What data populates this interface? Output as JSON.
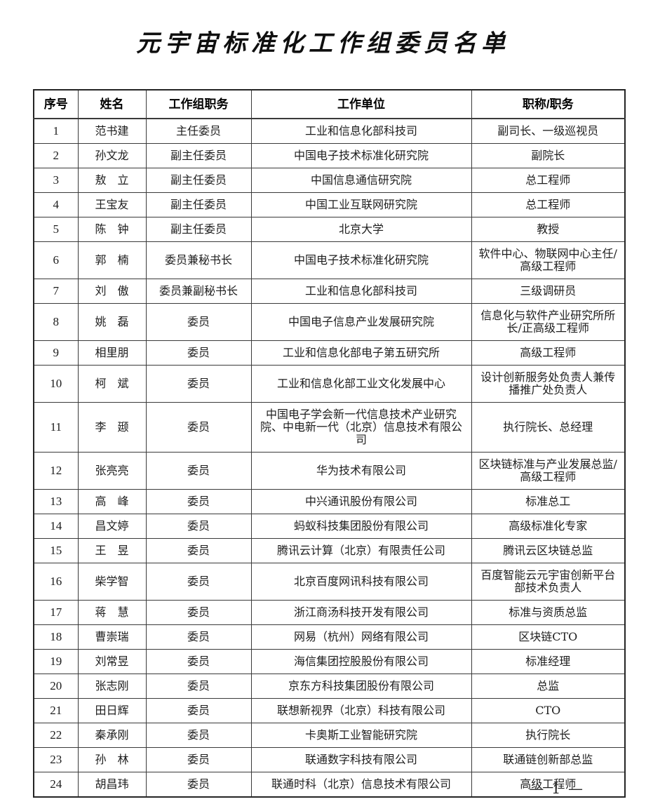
{
  "title": "元宇宙标准化工作组委员名单",
  "page_number": "— 1 —",
  "colors": {
    "page_background": "#ffffff",
    "text": "#1d1d1d",
    "border": "#3a3a3a",
    "outer_border": "#242424",
    "title_text": "#0f0f0f"
  },
  "table": {
    "headers": [
      "序号",
      "姓名",
      "工作组职务",
      "工作单位",
      "职称/职务"
    ],
    "rows": [
      {
        "no": "1",
        "name": "范书建",
        "role": "主任委员",
        "org": "工业和信息化部科技司",
        "title": "副司长、一级巡视员"
      },
      {
        "no": "2",
        "name": "孙文龙",
        "role": "副主任委员",
        "org": "中国电子技术标准化研究院",
        "title": "副院长"
      },
      {
        "no": "3",
        "name": "敖　立",
        "role": "副主任委员",
        "org": "中国信息通信研究院",
        "title": "总工程师"
      },
      {
        "no": "4",
        "name": "王宝友",
        "role": "副主任委员",
        "org": "中国工业互联网研究院",
        "title": "总工程师"
      },
      {
        "no": "5",
        "name": "陈　钟",
        "role": "副主任委员",
        "org": "北京大学",
        "title": "教授"
      },
      {
        "no": "6",
        "name": "郭　楠",
        "role": "委员兼秘书长",
        "org": "中国电子技术标准化研究院",
        "title": "软件中心、物联网中心主任/高级工程师"
      },
      {
        "no": "7",
        "name": "刘　傲",
        "role": "委员兼副秘书长",
        "org": "工业和信息化部科技司",
        "title": "三级调研员"
      },
      {
        "no": "8",
        "name": "姚　磊",
        "role": "委员",
        "org": "中国电子信息产业发展研究院",
        "title": "信息化与软件产业研究所所长/正高级工程师"
      },
      {
        "no": "9",
        "name": "相里朋",
        "role": "委员",
        "org": "工业和信息化部电子第五研究所",
        "title": "高级工程师"
      },
      {
        "no": "10",
        "name": "柯　斌",
        "role": "委员",
        "org": "工业和信息化部工业文化发展中心",
        "title": "设计创新服务处负责人兼传播推广处负责人"
      },
      {
        "no": "11",
        "name": "李　颋",
        "role": "委员",
        "org": "中国电子学会新一代信息技术产业研究院、中电新一代（北京）信息技术有限公司",
        "title": "执行院长、总经理"
      },
      {
        "no": "12",
        "name": "张亮亮",
        "role": "委员",
        "org": "华为技术有限公司",
        "title": "区块链标准与产业发展总监/高级工程师"
      },
      {
        "no": "13",
        "name": "高　峰",
        "role": "委员",
        "org": "中兴通讯股份有限公司",
        "title": "标准总工"
      },
      {
        "no": "14",
        "name": "昌文婷",
        "role": "委员",
        "org": "蚂蚁科技集团股份有限公司",
        "title": "高级标准化专家"
      },
      {
        "no": "15",
        "name": "王　昱",
        "role": "委员",
        "org": "腾讯云计算（北京）有限责任公司",
        "title": "腾讯云区块链总监"
      },
      {
        "no": "16",
        "name": "柴学智",
        "role": "委员",
        "org": "北京百度网讯科技有限公司",
        "title": "百度智能云元宇宙创新平台部技术负责人"
      },
      {
        "no": "17",
        "name": "蒋　慧",
        "role": "委员",
        "org": "浙江商汤科技开发有限公司",
        "title": "标准与资质总监"
      },
      {
        "no": "18",
        "name": "曹崇瑞",
        "role": "委员",
        "org": "网易（杭州）网络有限公司",
        "title": "区块链CTO"
      },
      {
        "no": "19",
        "name": "刘常昱",
        "role": "委员",
        "org": "海信集团控股股份有限公司",
        "title": "标准经理"
      },
      {
        "no": "20",
        "name": "张志刚",
        "role": "委员",
        "org": "京东方科技集团股份有限公司",
        "title": "总监"
      },
      {
        "no": "21",
        "name": "田日辉",
        "role": "委员",
        "org": "联想新视界（北京）科技有限公司",
        "title": "CTO"
      },
      {
        "no": "22",
        "name": "秦承刚",
        "role": "委员",
        "org": "卡奥斯工业智能研究院",
        "title": "执行院长"
      },
      {
        "no": "23",
        "name": "孙　林",
        "role": "委员",
        "org": "联通数字科技有限公司",
        "title": "联通链创新部总监"
      },
      {
        "no": "24",
        "name": "胡昌玮",
        "role": "委员",
        "org": "联通时科（北京）信息技术有限公司",
        "title": "高级工程师"
      }
    ]
  }
}
